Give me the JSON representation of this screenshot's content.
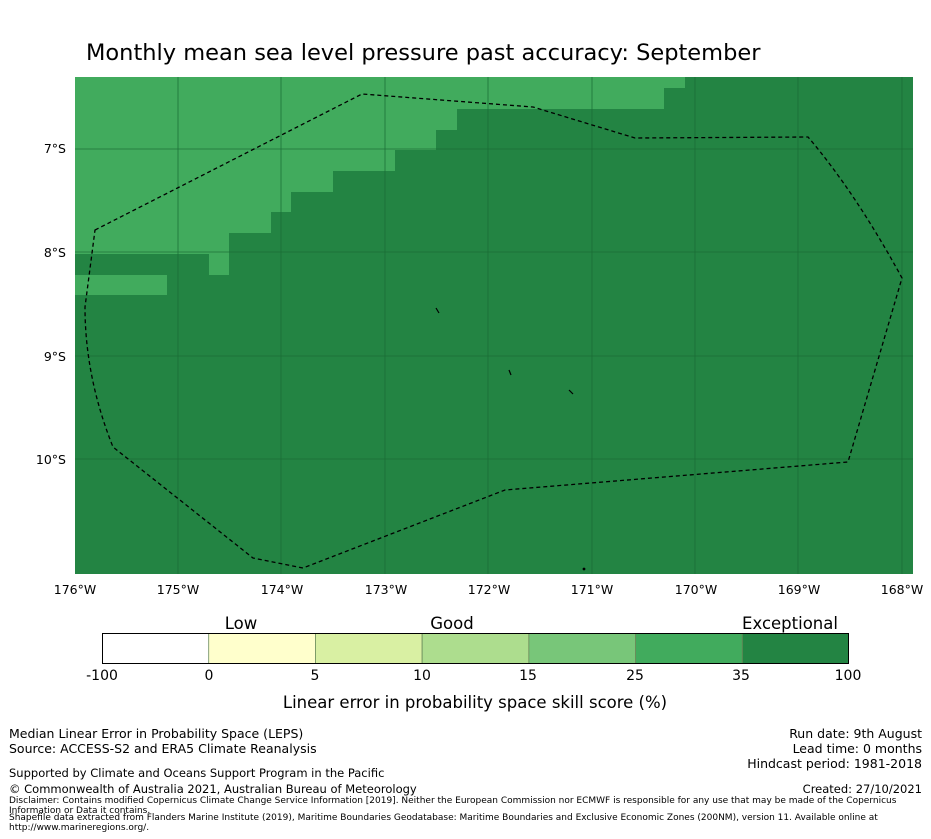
{
  "title": "Monthly mean sea level pressure past accuracy: September",
  "map": {
    "latitude_labels": [
      "7°S",
      "8°S",
      "9°S",
      "10°S"
    ],
    "longitude_labels": [
      "176°W",
      "175°W",
      "174°W",
      "173°W",
      "172°W",
      "171°W",
      "170°W",
      "169°W",
      "168°W"
    ],
    "colors": {
      "good_25_35": "#41ab5d",
      "exceptional_35_100": "#238443",
      "gridline": "#1a6b35",
      "boundary": "#000000"
    }
  },
  "colorbar": {
    "categories": [
      "Low",
      "Good",
      "Exceptional"
    ],
    "ticks": [
      "-100",
      "0",
      "5",
      "10",
      "15",
      "25",
      "35",
      "100"
    ],
    "colors": [
      "#ffffff",
      "#ffffcc",
      "#d9f0a3",
      "#addd8e",
      "#78c679",
      "#41ab5d",
      "#238443"
    ],
    "label": "Linear error in probability space skill score (%)"
  },
  "footer": {
    "left": [
      "Median Linear Error in Probability Space (LEPS)",
      "Source: ACCESS-S2 and ERA5 Climate Reanalysis",
      "Supported by Climate and Oceans Support Program in the Pacific",
      "© Commonwealth of Australia 2021, Australian Bureau of Meteorology"
    ],
    "right": [
      "Run date: 9th August",
      "Lead time: 0 months",
      "Hindcast period: 1981-2018",
      "Created: 27/10/2021"
    ],
    "disclaimer": "Disclaimer: Contains modified Copernicus Climate Change Service Information [2019]. Neither the European Commission nor ECMWF is responsible for any use that may be made of the Copernicus Information or Data it contains.",
    "shapefile": "Shapefile data extracted from Flanders Marine Institute (2019), Maritime Boundaries Geodatabase: Maritime Boundaries and Exclusive Economic Zones (200NM), version 11. Available online at http://www.marineregions.org/."
  }
}
